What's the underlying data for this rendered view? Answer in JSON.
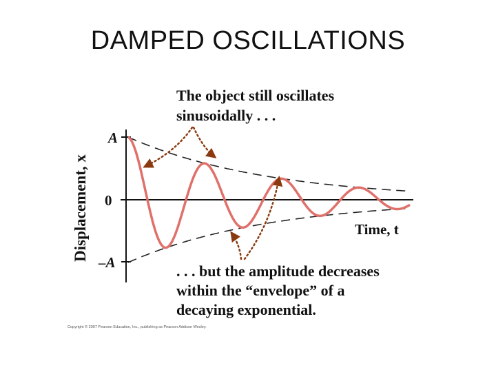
{
  "slide": {
    "title": "DAMPED OSCILLATIONS",
    "copyright": "Copyright © 2007 Pearson Education, Inc., publishing as Pearson Addison Wesley."
  },
  "colors": {
    "curve": "#e0706a",
    "annotation": "#8b3a10",
    "axis": "#111111",
    "envelope": "#222222"
  },
  "chart_data": {
    "type": "line",
    "title": "",
    "xlabel": "Time, t",
    "ylabel": "Displacement, x",
    "y_ticks": [
      "A",
      "0",
      "–A"
    ],
    "y_tick_values": [
      1,
      0,
      -1
    ],
    "xlim": [
      0,
      1
    ],
    "ylim": [
      -1.25,
      1.25
    ],
    "grid": false,
    "series": [
      {
        "kind": "damped-oscillation",
        "amplitude": 1,
        "decay_rate": 1.99,
        "cycles": 3.65,
        "phase_start": "cosine",
        "style": "solid"
      },
      {
        "kind": "upper-envelope",
        "function": "A·exp(-bt/2m)",
        "style": "dashed"
      },
      {
        "kind": "lower-envelope",
        "function": "-A·exp(-bt/2m)",
        "style": "dashed"
      }
    ],
    "annotations": [
      {
        "line1": "The object still oscillates",
        "line2": "sinusoidally . . ."
      },
      {
        "line1": ". . . but the amplitude decreases",
        "line2": "within the “envelope” of a",
        "line3": "decaying exponential."
      }
    ]
  }
}
